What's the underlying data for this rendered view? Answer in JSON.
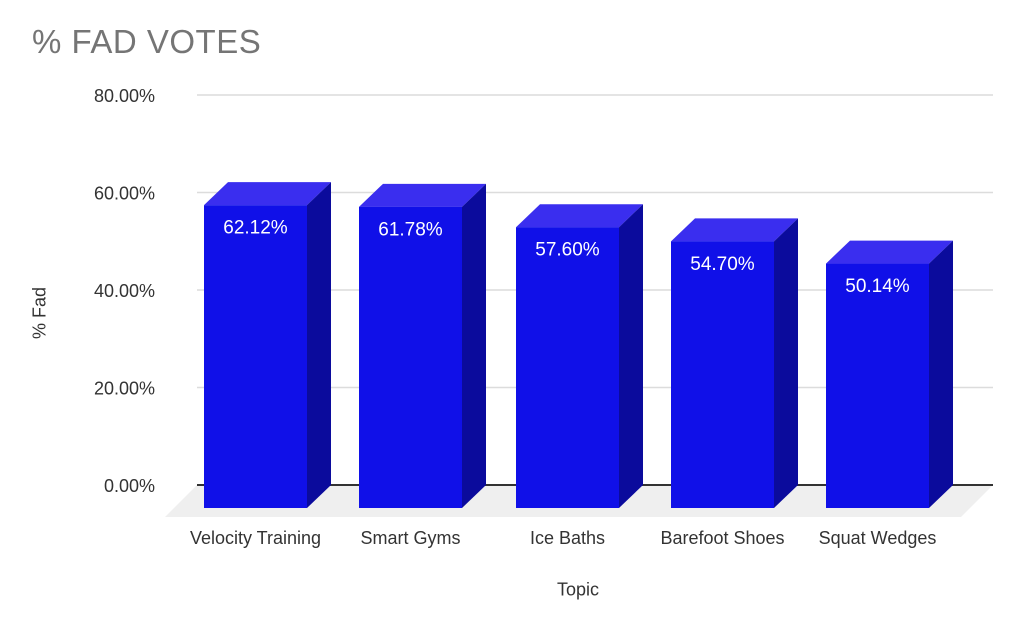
{
  "title": "% FAD VOTES",
  "colors": {
    "background": "#ffffff",
    "title_text": "#757575",
    "axis_text": "#333333",
    "gridline": "#dcdcdc",
    "zero_line": "#333333",
    "floor": "#efefef",
    "bar_front": "#1010e8",
    "bar_top": "#3a2eef",
    "bar_side": "#0b0b9c",
    "value_label": "#ffffff"
  },
  "chart_data": {
    "type": "bar",
    "style": "3d-column",
    "title": "% FAD VOTES",
    "xlabel": "Topic",
    "ylabel": "% Fad",
    "categories": [
      "Velocity Training",
      "Smart Gyms",
      "Ice Baths",
      "Barefoot Shoes",
      "Squat Wedges"
    ],
    "values": [
      62.12,
      61.78,
      57.6,
      54.7,
      50.14
    ],
    "value_labels": [
      "62.12%",
      "61.78%",
      "57.60%",
      "54.70%",
      "50.14%"
    ],
    "ylim": [
      0,
      80
    ],
    "yticks": [
      0,
      20,
      40,
      60,
      80
    ],
    "ytick_labels": [
      "0.00%",
      "20.00%",
      "40.00%",
      "60.00%",
      "80.00%"
    ],
    "grid": true,
    "legend": "none"
  }
}
